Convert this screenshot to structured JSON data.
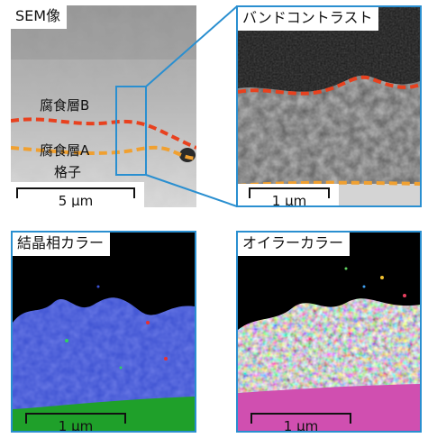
{
  "panels": {
    "sem": {
      "title": "SEM像",
      "labels": {
        "layer_b": "腐食層B",
        "layer_a": "腐食層A",
        "lattice": "格子"
      },
      "scale_bar": "5 µm"
    },
    "band_contrast": {
      "title": "バンドコントラスト",
      "scale_bar": "1 µm"
    },
    "phase_color": {
      "title": "結晶相カラー",
      "scale_bar": "1 µm"
    },
    "euler_color": {
      "title": "オイラーカラー",
      "scale_bar": "1 µm"
    }
  },
  "colors": {
    "frame_blue": "#2a8fd0",
    "boundary_red": "#e8411e",
    "boundary_orange": "#f0a030",
    "phase_blue": "#3a4fd0",
    "phase_green": "#1fa02a",
    "euler_pink": "#d04fb0"
  }
}
